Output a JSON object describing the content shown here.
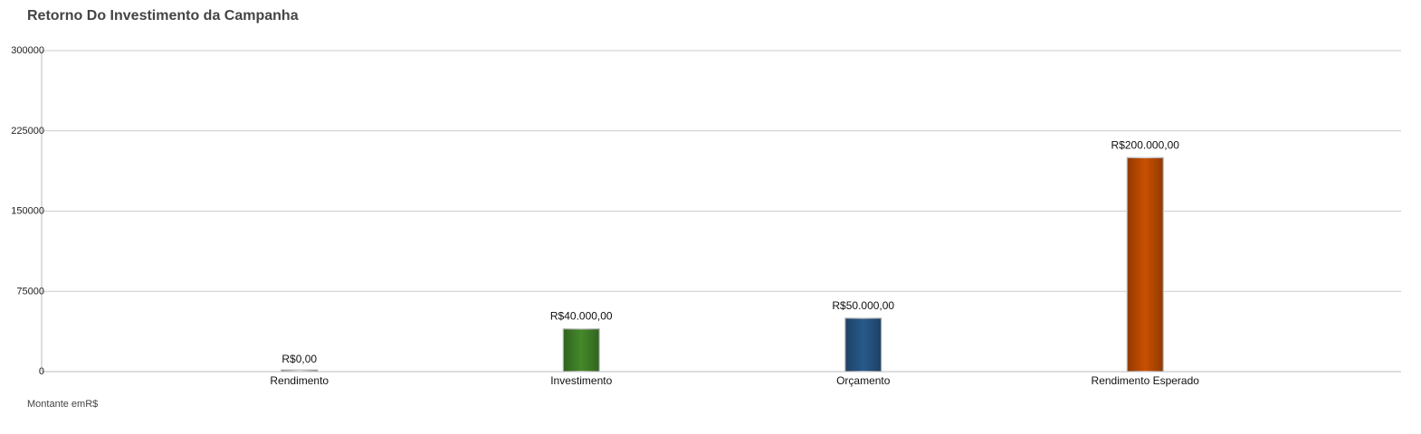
{
  "chart_data": {
    "type": "bar",
    "title": "Retorno Do Investimento da Campanha",
    "xlabel": "",
    "ylabel": "",
    "footnote": "Montante emR$",
    "categories": [
      "Rendimento",
      "Investimento",
      "Orçamento",
      "Rendimento Esperado"
    ],
    "values": [
      0,
      40000,
      50000,
      200000
    ],
    "data_labels": [
      "R$0,00",
      "R$40.000,00",
      "R$50.000,00",
      "R$200.000,00"
    ],
    "colors": [
      "#d9d9d9",
      "#44892a",
      "#285a8b",
      "#c95000"
    ],
    "ylim": [
      0,
      300000
    ],
    "yticks": [
      0,
      75000,
      150000,
      225000,
      300000
    ],
    "ytick_labels": [
      "0",
      "75000",
      "150000",
      "225000",
      "300000"
    ],
    "grid": true,
    "legend": "none"
  }
}
